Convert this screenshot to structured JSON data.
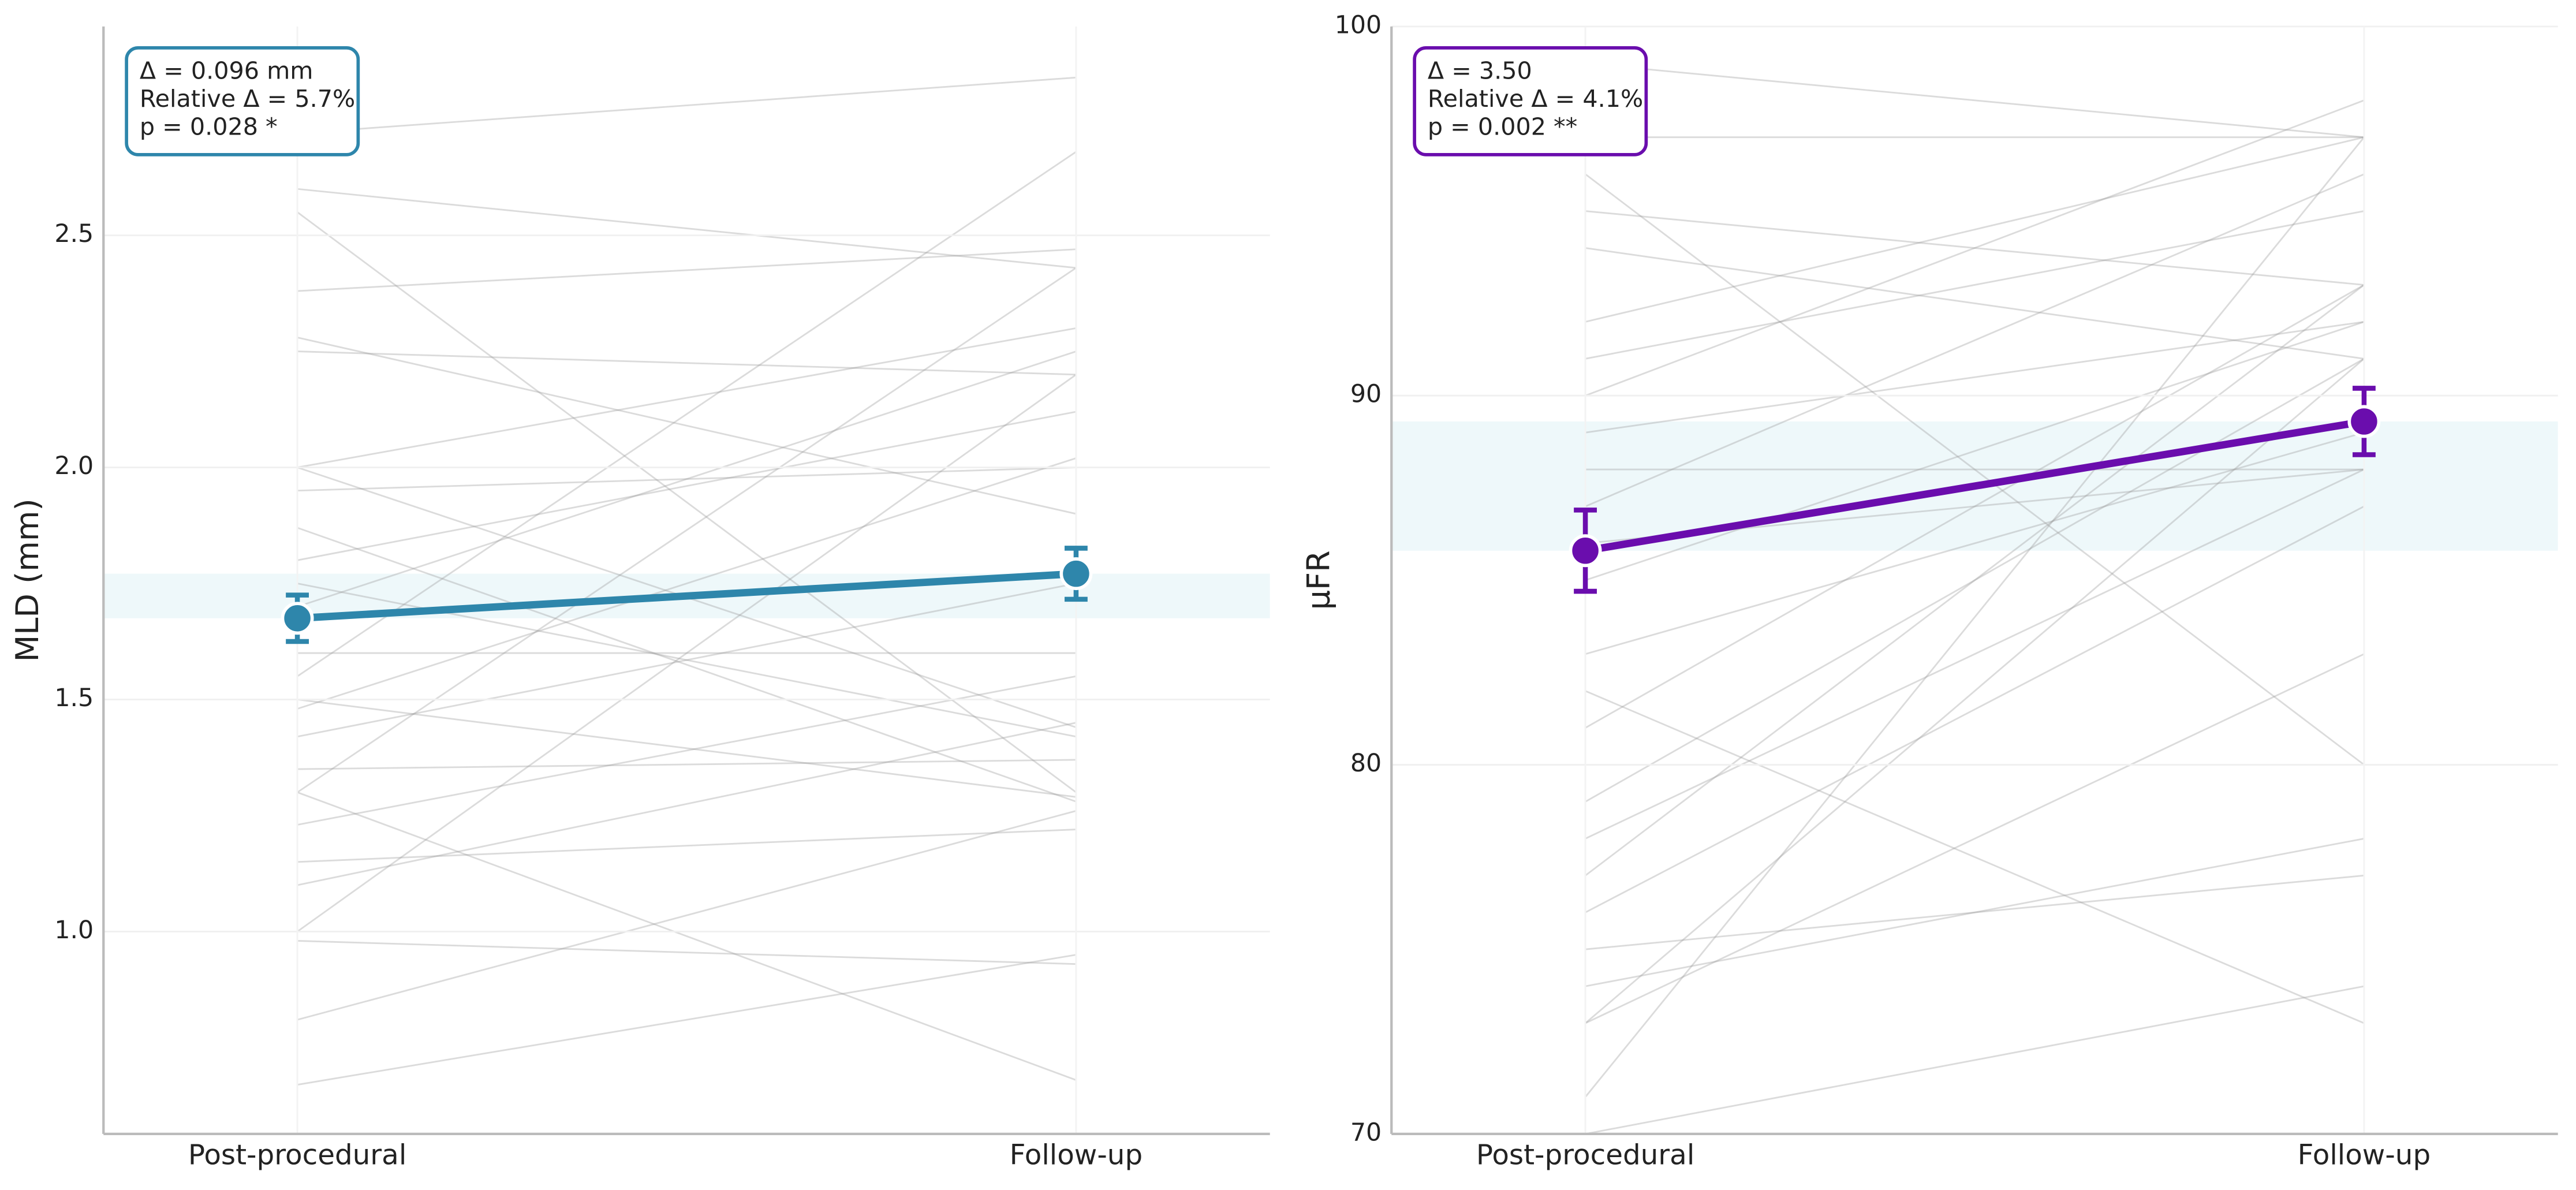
{
  "chart_data": [
    {
      "type": "line",
      "y_label": "MLD (mm)",
      "categories": [
        "Post-procedural",
        "Follow-up"
      ],
      "ylim": [
        0.564,
        2.95
      ],
      "yticks": [
        {
          "value": 1,
          "label": "1.0"
        },
        1.5,
        {
          "value": 2,
          "label": "2.0"
        },
        2.5
      ],
      "grid": true,
      "color": "#2e86ab",
      "mean": [
        1.675,
        1.771
      ],
      "error": [
        0.05,
        0.055
      ],
      "subjects": [
        [
          2.72,
          2.84
        ],
        [
          2.6,
          2.43
        ],
        [
          2.55,
          1.3
        ],
        [
          2.38,
          2.47
        ],
        [
          2.28,
          1.9
        ],
        [
          2.25,
          2.2
        ],
        [
          2.0,
          2.3
        ],
        [
          2.0,
          1.44
        ],
        [
          1.95,
          2.0
        ],
        [
          1.87,
          1.28
        ],
        [
          1.8,
          2.12
        ],
        [
          1.75,
          1.42
        ],
        [
          1.7,
          2.25
        ],
        [
          1.6,
          1.6
        ],
        [
          1.55,
          2.68
        ],
        [
          1.5,
          1.29
        ],
        [
          1.48,
          2.02
        ],
        [
          1.42,
          1.75
        ],
        [
          1.35,
          1.37
        ],
        [
          1.3,
          2.43
        ],
        [
          1.3,
          0.68
        ],
        [
          1.23,
          1.55
        ],
        [
          1.15,
          1.22
        ],
        [
          1.1,
          1.45
        ],
        [
          1.0,
          2.2
        ],
        [
          0.98,
          0.93
        ],
        [
          0.81,
          1.26
        ],
        [
          0.67,
          0.95
        ]
      ],
      "annotation": [
        "Δ = 0.096 mm",
        "Relative Δ = 5.7%",
        "p = 0.028 *"
      ]
    },
    {
      "type": "line",
      "y_label": "μFR",
      "categories": [
        "Post-procedural",
        "Follow-up"
      ],
      "ylim": [
        70,
        100
      ],
      "yticks": [
        70,
        80,
        90,
        100
      ],
      "grid": true,
      "color": "#6a0dad",
      "mean": [
        85.8,
        89.3
      ],
      "error": [
        1.1,
        0.9
      ],
      "subjects": [
        [
          99,
          97
        ],
        [
          97,
          97
        ],
        [
          96,
          80
        ],
        [
          95,
          93
        ],
        [
          94,
          91
        ],
        [
          92,
          97
        ],
        [
          91,
          95
        ],
        [
          90,
          98
        ],
        [
          89,
          92
        ],
        [
          88,
          88
        ],
        [
          87,
          96
        ],
        [
          86,
          88
        ],
        [
          85,
          92
        ],
        [
          83,
          89
        ],
        [
          82,
          73
        ],
        [
          81,
          93
        ],
        [
          79,
          91
        ],
        [
          78,
          88
        ],
        [
          77,
          93
        ],
        [
          76,
          87
        ],
        [
          75,
          77
        ],
        [
          74,
          78
        ],
        [
          73,
          91
        ],
        [
          73,
          83
        ],
        [
          71,
          97
        ],
        [
          70,
          74
        ]
      ],
      "annotation": [
        "Δ = 3.50",
        "Relative Δ = 4.1%",
        "p = 0.002 **"
      ]
    }
  ]
}
